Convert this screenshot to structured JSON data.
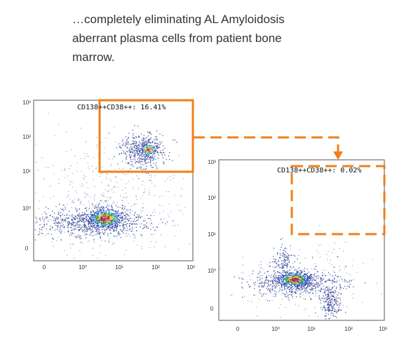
{
  "caption": [
    "…completely eliminating AL Amyloidosis",
    "aberrant plasma cells from patient bone",
    "marrow."
  ],
  "plots": [
    {
      "gate_label": "CD138++CD38++: 16.41%",
      "y_ticks": [
        "10³",
        "10²",
        "10¹",
        "10⁰",
        "0"
      ],
      "x_ticks": [
        "0",
        "10⁰",
        "10¹",
        "10²",
        "10³"
      ]
    },
    {
      "gate_label": "CD138++CD38++: 0.02%",
      "y_ticks": [
        "10³",
        "10²",
        "10¹",
        "10⁰",
        "0"
      ],
      "x_ticks": [
        "0",
        "10⁰",
        "10¹",
        "10²",
        "10³"
      ]
    }
  ]
}
